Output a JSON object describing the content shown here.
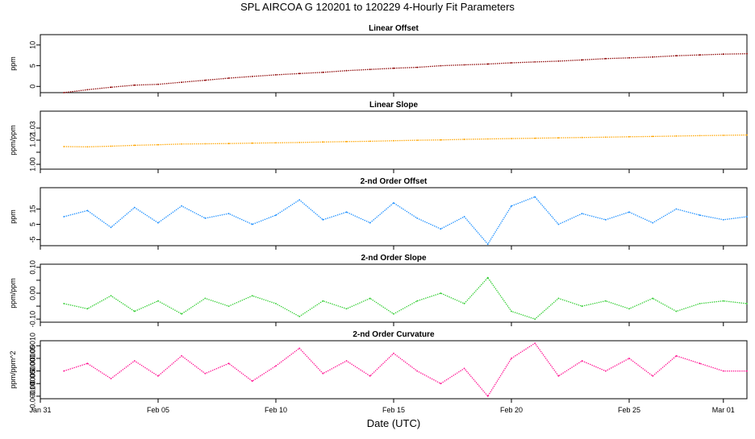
{
  "figure": {
    "title": "SPL   AIRCOA G   120201 to 120229   4-Hourly Fit Parameters",
    "xlabel": "Date (UTC)",
    "x_tick_labels": [
      "Jan 31",
      "Feb 05",
      "Feb 10",
      "Feb 15",
      "Feb 20",
      "Feb 25",
      "Mar 01"
    ]
  },
  "chart_data": [
    {
      "type": "line",
      "title": "Linear Offset",
      "ylabel": "ppm",
      "xlim": [
        "2012-01-31",
        "2012-03-01"
      ],
      "ylim": [
        -1.5,
        12.5
      ],
      "yticks": [
        0,
        5,
        10
      ],
      "ytick_labels": [
        "0",
        "5",
        "10"
      ],
      "color": "#8b0000",
      "series": [
        {
          "x": [
            "2012-02-01",
            "2012-02-02",
            "2012-02-03",
            "2012-02-04",
            "2012-02-05",
            "2012-02-06",
            "2012-02-07",
            "2012-02-08",
            "2012-02-09",
            "2012-02-10",
            "2012-02-11",
            "2012-02-12",
            "2012-02-13",
            "2012-02-14",
            "2012-02-15",
            "2012-02-16",
            "2012-02-17",
            "2012-02-18",
            "2012-02-19",
            "2012-02-20",
            "2012-02-21",
            "2012-02-22",
            "2012-02-23",
            "2012-02-24",
            "2012-02-25",
            "2012-02-26",
            "2012-02-27",
            "2012-02-28",
            "2012-02-29",
            "2012-03-01"
          ],
          "y": [
            -1.5,
            -0.8,
            -0.2,
            0.3,
            0.5,
            1.0,
            1.5,
            2.0,
            2.4,
            2.8,
            3.1,
            3.4,
            3.8,
            4.1,
            4.4,
            4.6,
            5.0,
            5.2,
            5.4,
            5.7,
            5.9,
            6.1,
            6.4,
            6.7,
            6.9,
            7.1,
            7.4,
            7.6,
            7.8,
            7.9
          ]
        }
      ]
    },
    {
      "type": "line",
      "title": "Linear Slope",
      "ylabel": "ppm/ppm",
      "xlim": [
        "2012-01-31",
        "2012-03-01"
      ],
      "ylim": [
        0.996,
        1.044
      ],
      "yticks": [
        1.0,
        1.01,
        1.02,
        1.03
      ],
      "ytick_labels": [
        "1.00",
        "",
        "1.02",
        "1.03"
      ],
      "color": "#ffa500",
      "series": [
        {
          "x": [
            "2012-02-01",
            "2012-02-02",
            "2012-02-03",
            "2012-02-04",
            "2012-02-05",
            "2012-02-06",
            "2012-02-07",
            "2012-02-08",
            "2012-02-09",
            "2012-02-10",
            "2012-02-11",
            "2012-02-12",
            "2012-02-13",
            "2012-02-14",
            "2012-02-15",
            "2012-02-16",
            "2012-02-17",
            "2012-02-18",
            "2012-02-19",
            "2012-02-20",
            "2012-02-21",
            "2012-02-22",
            "2012-02-23",
            "2012-02-24",
            "2012-02-25",
            "2012-02-26",
            "2012-02-27",
            "2012-02-28",
            "2012-02-29",
            "2012-03-01"
          ],
          "y": [
            1.0147,
            1.0145,
            1.015,
            1.0157,
            1.0162,
            1.0168,
            1.017,
            1.0172,
            1.0175,
            1.0178,
            1.0181,
            1.0185,
            1.0188,
            1.0191,
            1.0195,
            1.0199,
            1.0202,
            1.0207,
            1.021,
            1.0213,
            1.0216,
            1.0219,
            1.0222,
            1.0225,
            1.0228,
            1.0231,
            1.0234,
            1.0237,
            1.024,
            1.0243
          ]
        }
      ]
    },
    {
      "type": "line",
      "title": "2-nd Order Offset",
      "ylabel": "ppm",
      "xlim": [
        "2012-01-31",
        "2012-03-01"
      ],
      "ylim": [
        -9,
        29
      ],
      "yticks": [
        -5,
        5,
        15
      ],
      "ytick_labels": [
        "-5",
        "5",
        "15"
      ],
      "color": "#1e90ff",
      "series": [
        {
          "x": [
            "2012-02-01",
            "2012-02-02",
            "2012-02-03",
            "2012-02-04",
            "2012-02-05",
            "2012-02-06",
            "2012-02-07",
            "2012-02-08",
            "2012-02-09",
            "2012-02-10",
            "2012-02-11",
            "2012-02-12",
            "2012-02-13",
            "2012-02-14",
            "2012-02-15",
            "2012-02-16",
            "2012-02-17",
            "2012-02-18",
            "2012-02-19",
            "2012-02-20",
            "2012-02-21",
            "2012-02-22",
            "2012-02-23",
            "2012-02-24",
            "2012-02-25",
            "2012-02-26",
            "2012-02-27",
            "2012-02-28",
            "2012-02-29",
            "2012-03-01"
          ],
          "y": [
            10,
            14,
            3,
            16,
            6,
            17,
            9,
            12,
            5,
            11,
            21,
            8,
            13,
            6,
            19,
            9,
            2,
            10,
            -8,
            17,
            23,
            5,
            12,
            8,
            13,
            6,
            15,
            11,
            8,
            10
          ]
        }
      ]
    },
    {
      "type": "line",
      "title": "2-nd Order Slope",
      "ylabel": "ppm/ppm",
      "xlim": [
        "2012-01-31",
        "2012-03-01"
      ],
      "ylim": [
        -0.112,
        0.112
      ],
      "yticks": [
        -0.1,
        -0.05,
        0.0,
        0.05,
        0.1
      ],
      "ytick_labels": [
        "-0.10",
        "",
        "0.00",
        "",
        "0.10"
      ],
      "color": "#32cd32",
      "series": [
        {
          "x": [
            "2012-02-01",
            "2012-02-02",
            "2012-02-03",
            "2012-02-04",
            "2012-02-05",
            "2012-02-06",
            "2012-02-07",
            "2012-02-08",
            "2012-02-09",
            "2012-02-10",
            "2012-02-11",
            "2012-02-12",
            "2012-02-13",
            "2012-02-14",
            "2012-02-15",
            "2012-02-16",
            "2012-02-17",
            "2012-02-18",
            "2012-02-19",
            "2012-02-20",
            "2012-02-21",
            "2012-02-22",
            "2012-02-23",
            "2012-02-24",
            "2012-02-25",
            "2012-02-26",
            "2012-02-27",
            "2012-02-28",
            "2012-02-29",
            "2012-03-01"
          ],
          "y": [
            -0.04,
            -0.06,
            -0.01,
            -0.07,
            -0.03,
            -0.08,
            -0.02,
            -0.05,
            -0.01,
            -0.04,
            -0.09,
            -0.03,
            -0.06,
            -0.02,
            -0.08,
            -0.03,
            0.0,
            -0.04,
            0.06,
            -0.07,
            -0.1,
            -0.02,
            -0.05,
            -0.03,
            -0.06,
            -0.02,
            -0.07,
            -0.04,
            -0.03,
            -0.04
          ]
        }
      ]
    },
    {
      "type": "line",
      "title": "2-nd Order Curvature",
      "ylabel": "ppm/ppm^2",
      "xlim": [
        "2012-01-31",
        "2012-03-01"
      ],
      "ylim": [
        -0.00011,
        0.00012
      ],
      "yticks": [
        -0.0001,
        -5e-05,
        0.0,
        5e-05,
        0.0001
      ],
      "ytick_labels": [
        "-0.00010",
        "-0.00005",
        "0.00000",
        "0.00005",
        "0.00010"
      ],
      "color": "#ff1493",
      "series": [
        {
          "x": [
            "2012-02-01",
            "2012-02-02",
            "2012-02-03",
            "2012-02-04",
            "2012-02-05",
            "2012-02-06",
            "2012-02-07",
            "2012-02-08",
            "2012-02-09",
            "2012-02-10",
            "2012-02-11",
            "2012-02-12",
            "2012-02-13",
            "2012-02-14",
            "2012-02-15",
            "2012-02-16",
            "2012-02-17",
            "2012-02-18",
            "2012-02-19",
            "2012-02-20",
            "2012-02-21",
            "2012-02-22",
            "2012-02-23",
            "2012-02-24",
            "2012-02-25",
            "2012-02-26",
            "2012-02-27",
            "2012-02-28",
            "2012-02-29",
            "2012-03-01"
          ],
          "y": [
            0.0,
            3e-05,
            -3e-05,
            4e-05,
            -2e-05,
            6e-05,
            -1e-05,
            3e-05,
            -4e-05,
            2e-05,
            9e-05,
            -1e-05,
            4e-05,
            -2e-05,
            7e-05,
            0.0,
            -5e-05,
            1e-05,
            -0.0001,
            5e-05,
            0.00011,
            -2e-05,
            4e-05,
            0.0,
            5e-05,
            -2e-05,
            6e-05,
            3e-05,
            0.0,
            0.0
          ]
        }
      ]
    }
  ]
}
